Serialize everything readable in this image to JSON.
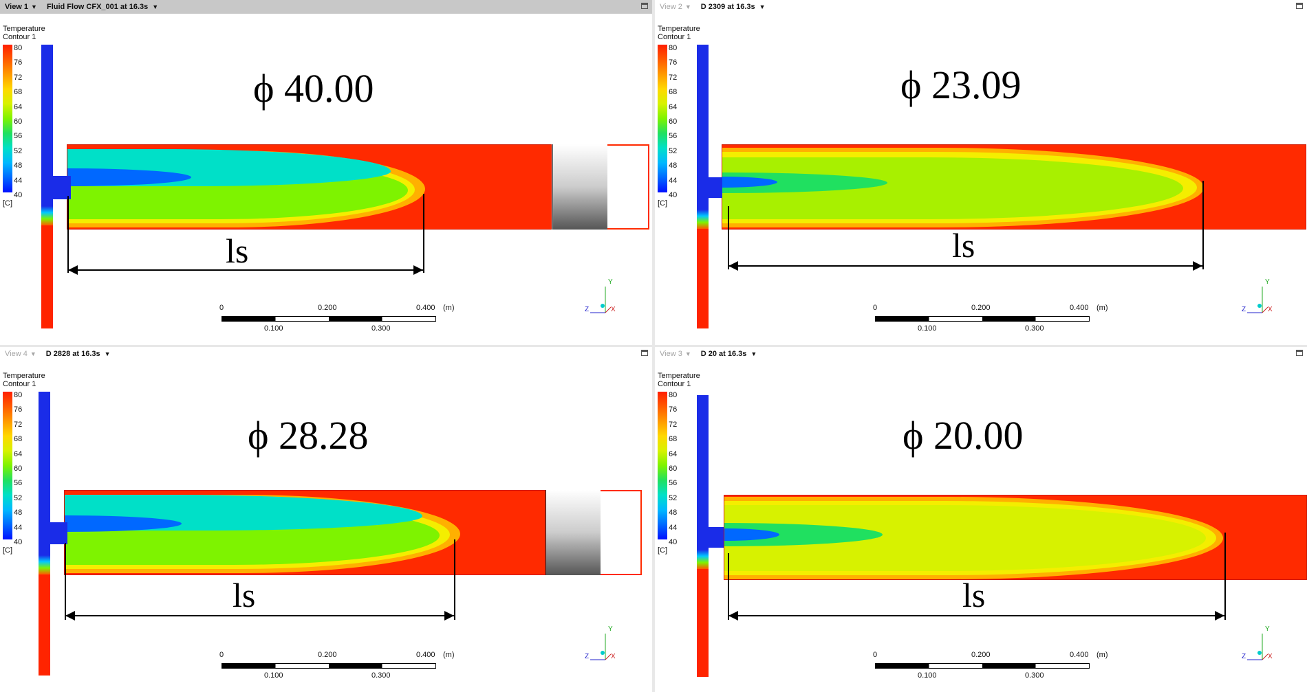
{
  "views": [
    {
      "id": "tl",
      "name": "View 1",
      "title": "Fluid Flow CFX_001 at 16.3s",
      "active": true,
      "caption": "ϕ 40.00",
      "ls": "ls"
    },
    {
      "id": "tr",
      "name": "View 2",
      "title": "D 2309 at 16.3s",
      "active": false,
      "caption": "ϕ 23.09",
      "ls": "ls"
    },
    {
      "id": "bl",
      "name": "View 4",
      "title": "D 2828 at 16.3s",
      "active": false,
      "caption": "ϕ 28.28",
      "ls": "ls"
    },
    {
      "id": "br",
      "name": "View 3",
      "title": "D 20 at 16.3s",
      "active": false,
      "caption": "ϕ 20.00",
      "ls": "ls"
    }
  ],
  "legend": {
    "title": "Temperature",
    "subtitle": "Contour 1",
    "ticks": [
      "80",
      "76",
      "72",
      "68",
      "64",
      "60",
      "56",
      "52",
      "48",
      "44",
      "40"
    ],
    "unit": "[C]"
  },
  "scale_bar": {
    "top_labels": [
      "0",
      "0.200",
      "0.400"
    ],
    "unit": "(m)",
    "bottom_labels": [
      "0.100",
      "0.300"
    ]
  },
  "axes": {
    "x": "X",
    "y": "Y",
    "z": "Z"
  },
  "colors": {
    "hot": "#ff2a00",
    "cold": "#1a2ce8",
    "mid": "#7ef300",
    "cyan": "#00e0c8"
  }
}
